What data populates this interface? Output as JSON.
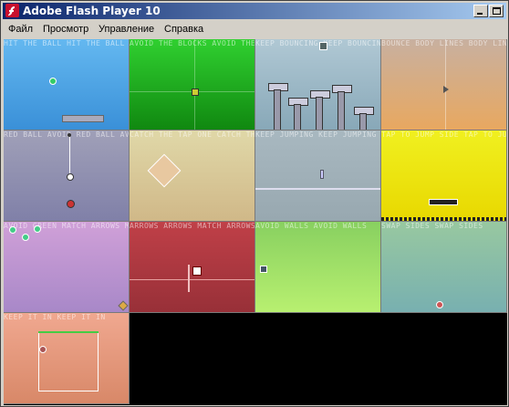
{
  "window": {
    "title": "Adobe Flash Player 10",
    "icon": "flash-player-icon",
    "buttons": [
      "minimize-icon",
      "maximize-icon",
      "close-icon"
    ]
  },
  "menu": {
    "items": [
      "Файл",
      "Просмотр",
      "Управление",
      "Справка"
    ]
  },
  "tiles": [
    {
      "label": "HIT THE BALL HIT THE BALL",
      "bg": "#4aa6e8"
    },
    {
      "label": "AVOID THE BLOCKS AVOID THE",
      "bg": "#22b422"
    },
    {
      "label": "KEEP BOUNCING KEEP BOUNCING",
      "bg": "#9fb8c8"
    },
    {
      "label": "BOUNCE BODY LINES BODY LINES",
      "bg": "#d8a878"
    },
    {
      "label": "RED BALL AVOID RED BALL AVOID",
      "bg": "#9090b0"
    },
    {
      "label": "CATCH THE TAP ONE CATCH THE",
      "bg": "#d8c890"
    },
    {
      "label": "KEEP JUMPING KEEP JUMPING",
      "bg": "#98acb8"
    },
    {
      "label": "TAP TO JUMP SIDE TAP TO JUMP",
      "bg": "#f0e020"
    },
    {
      "label": "AVOID GREEN MATCH ARROWS MATCH",
      "bg": "#b088c0"
    },
    {
      "label": "ARROWS ARROWS MATCH ARROWS",
      "bg": "#a83840"
    },
    {
      "label": "AVOID WALLS AVOID WALLS",
      "bg": "#90d060"
    },
    {
      "label": "SWAP SIDES SWAP SIDES",
      "bg": "#88b8a8"
    },
    {
      "label": "KEEP IT IN KEEP IT IN",
      "bg": "#e08868"
    }
  ],
  "colors": {
    "title_start": "#0a246a",
    "title_end": "#a6caf0",
    "chrome": "#d4d0c8",
    "content_bg": "#000000"
  }
}
